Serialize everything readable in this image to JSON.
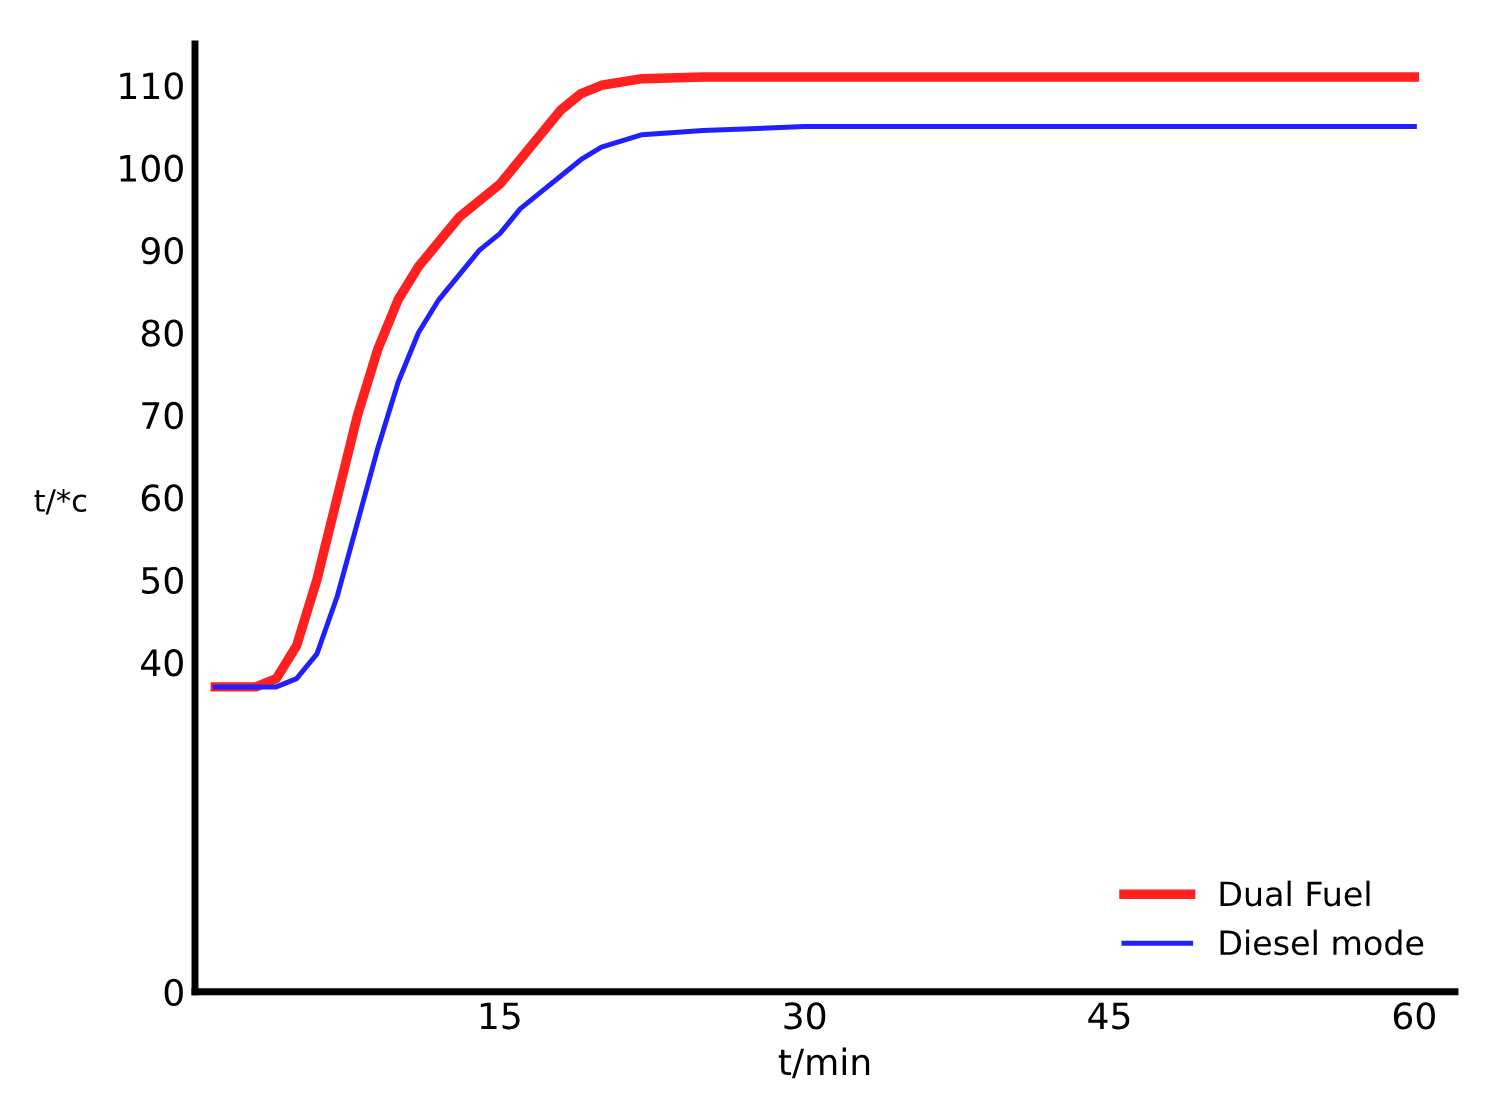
{
  "chart_data": {
    "type": "line",
    "xlabel": "t/min",
    "ylabel": "t/*c",
    "xlim": [
      0,
      62
    ],
    "xticks": [
      15,
      30,
      45,
      60
    ],
    "ylim": [
      0,
      115
    ],
    "yticks": [
      0,
      40,
      50,
      60,
      70,
      80,
      90,
      100,
      110
    ],
    "grid": false,
    "legend": "bottom right",
    "marker": "none",
    "line_style": "solid",
    "series": [
      {
        "name": "Dual Fuel",
        "color": "#ff2020",
        "x": [
          1,
          3,
          4,
          5,
          6,
          7,
          8,
          9,
          10,
          11,
          12,
          13,
          14,
          15,
          16,
          17,
          18,
          19,
          20,
          22,
          25,
          30,
          45,
          60
        ],
        "values": [
          37,
          37,
          38,
          42,
          50,
          60,
          70,
          78,
          84,
          88,
          91,
          94,
          96,
          98,
          101,
          104,
          107,
          109,
          110,
          110.8,
          111,
          111,
          111,
          111
        ]
      },
      {
        "name": "Diesel mode",
        "color": "#2020ff",
        "x": [
          1,
          4,
          5,
          6,
          7,
          8,
          9,
          10,
          11,
          12,
          13,
          14,
          15,
          16,
          17,
          18,
          19,
          20,
          22,
          25,
          30,
          45,
          60
        ],
        "values": [
          37,
          37,
          38,
          41,
          48,
          57,
          66,
          74,
          80,
          84,
          87,
          90,
          92,
          95,
          97,
          99,
          101,
          102.5,
          104,
          104.5,
          105,
          105,
          105
        ]
      }
    ]
  }
}
